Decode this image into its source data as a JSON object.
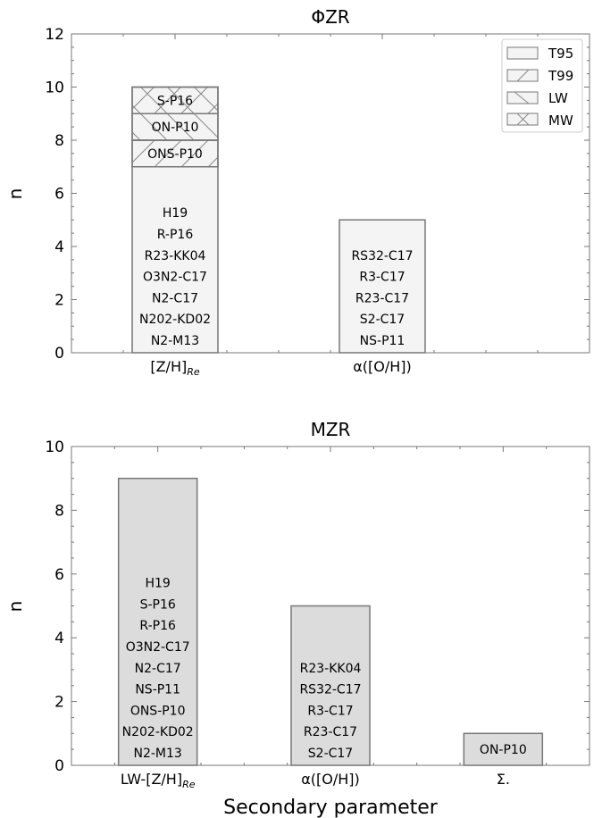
{
  "figure": {
    "xlabel": "Secondary parameter"
  },
  "legend": {
    "placement": "top-right",
    "entries": [
      {
        "label": "T95",
        "hatch": "none"
      },
      {
        "label": "T99",
        "hatch": "diag-forward"
      },
      {
        "label": "LW",
        "hatch": "diag-back"
      },
      {
        "label": "MW",
        "hatch": "cross"
      }
    ]
  },
  "colors": {
    "top_fill": "#f4f4f4",
    "bottom_fill": "#dcdcdc",
    "edge": "#777777"
  },
  "chart_data": [
    {
      "type": "bar",
      "stacked": true,
      "title": "ΦZR",
      "ylabel": "n",
      "ylim": [
        0,
        12
      ],
      "yticks": [
        0,
        2,
        4,
        6,
        8,
        10,
        12
      ],
      "xlim": [
        -0.5,
        2.0
      ],
      "categories": [
        "[Z/H]_Re",
        "α([O/H])"
      ],
      "tick_labels": [
        {
          "main": "[Z/H]",
          "sub": "Re"
        },
        {
          "main": "α([O/H])",
          "sub": ""
        }
      ],
      "segments": [
        {
          "category": 0,
          "series": "T95",
          "bottom": 0,
          "value": 7,
          "labels": [
            "H19",
            "R-P16",
            "R23-KK04",
            "O3N2-C17",
            "N2-C17",
            "N202-KD02",
            "N2-M13"
          ]
        },
        {
          "category": 0,
          "series": "T99",
          "bottom": 7,
          "value": 1,
          "labels": [
            "ONS-P10"
          ]
        },
        {
          "category": 0,
          "series": "LW",
          "bottom": 8,
          "value": 1,
          "labels": [
            "ON-P10"
          ]
        },
        {
          "category": 0,
          "series": "MW",
          "bottom": 9,
          "value": 1,
          "labels": [
            "S-P16"
          ]
        },
        {
          "category": 1,
          "series": "T95",
          "bottom": 0,
          "value": 5,
          "labels": [
            "RS32-C17",
            "R3-C17",
            "R23-C17",
            "S2-C17",
            "NS-P11"
          ]
        }
      ]
    },
    {
      "type": "bar",
      "title": "MZR",
      "ylabel": "n",
      "ylim": [
        0,
        10
      ],
      "yticks": [
        0,
        2,
        4,
        6,
        8,
        10
      ],
      "xlim": [
        -0.5,
        2.5
      ],
      "categories": [
        "LW-[Z/H]_Re",
        "α([O/H])",
        "Σ."
      ],
      "tick_labels": [
        {
          "main": "LW-[Z/H]",
          "sub": "Re"
        },
        {
          "main": "α([O/H])",
          "sub": ""
        },
        {
          "main": "Σ.",
          "sub": ""
        }
      ],
      "segments": [
        {
          "category": 0,
          "series": "",
          "bottom": 0,
          "value": 9,
          "labels": [
            "H19",
            "S-P16",
            "R-P16",
            "O3N2-C17",
            "N2-C17",
            "NS-P11",
            "ONS-P10",
            "N202-KD02",
            "N2-M13"
          ]
        },
        {
          "category": 1,
          "series": "",
          "bottom": 0,
          "value": 5,
          "labels": [
            "R23-KK04",
            "RS32-C17",
            "R3-C17",
            "R23-C17",
            "S2-C17"
          ]
        },
        {
          "category": 2,
          "series": "",
          "bottom": 0,
          "value": 1,
          "labels": [
            "ON-P10"
          ]
        }
      ]
    }
  ]
}
